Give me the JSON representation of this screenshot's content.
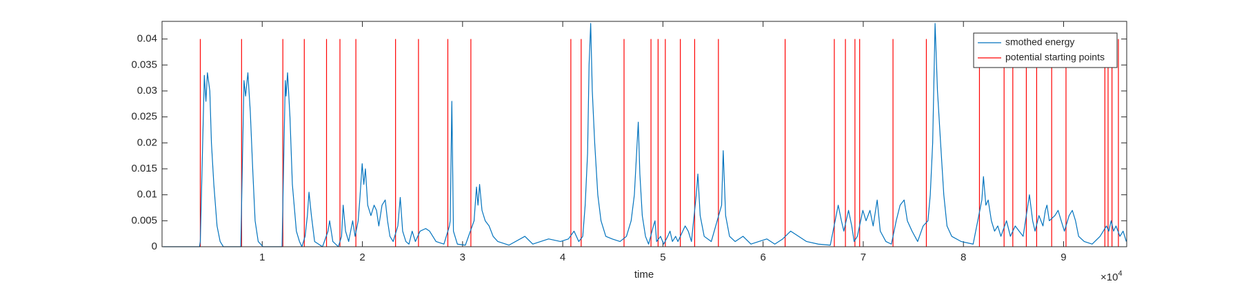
{
  "chart_data": {
    "type": "line",
    "xlabel": "time",
    "x_exponent": {
      "base": "×10",
      "power": "4"
    },
    "xlim": [
      0,
      9.63
    ],
    "xticks": [
      1,
      2,
      3,
      4,
      5,
      6,
      7,
      8,
      9
    ],
    "ylim": [
      0,
      0.0434
    ],
    "yticks": [
      0,
      0.005,
      0.01,
      0.015,
      0.02,
      0.025,
      0.03,
      0.035,
      0.04
    ],
    "grid": false,
    "legend": "northeast",
    "series": [
      {
        "name": "smothed energy",
        "color": "#0072bd",
        "mark": "line",
        "x": [
          0.01,
          0.374,
          0.382,
          0.422,
          0.438,
          0.453,
          0.477,
          0.493,
          0.517,
          0.549,
          0.58,
          0.612,
          0.786,
          0.818,
          0.834,
          0.857,
          0.881,
          0.905,
          0.929,
          0.96,
          1.008,
          1.198,
          1.23,
          1.238,
          1.253,
          1.277,
          1.301,
          1.341,
          1.372,
          1.396,
          1.428,
          1.451,
          1.467,
          1.491,
          1.523,
          1.602,
          1.657,
          1.673,
          1.705,
          1.76,
          1.792,
          1.808,
          1.832,
          1.863,
          1.903,
          1.927,
          1.958,
          1.974,
          1.998,
          2.014,
          2.03,
          2.053,
          2.085,
          2.117,
          2.141,
          2.164,
          2.196,
          2.228,
          2.251,
          2.275,
          2.307,
          2.354,
          2.378,
          2.402,
          2.434,
          2.465,
          2.497,
          2.529,
          2.576,
          2.632,
          2.671,
          2.735,
          2.814,
          2.869,
          2.877,
          2.893,
          2.909,
          2.948,
          3.028,
          3.115,
          3.139,
          3.154,
          3.17,
          3.194,
          3.226,
          3.265,
          3.305,
          3.352,
          3.463,
          3.622,
          3.701,
          3.859,
          3.978,
          4.057,
          4.113,
          4.16,
          4.2,
          4.224,
          4.248,
          4.263,
          4.279,
          4.295,
          4.319,
          4.35,
          4.382,
          4.43,
          4.493,
          4.572,
          4.636,
          4.683,
          4.715,
          4.754,
          4.77,
          4.794,
          4.826,
          4.857,
          4.905,
          4.921,
          4.937,
          4.976,
          5.008,
          5.048,
          5.071,
          5.095,
          5.127,
          5.15,
          5.198,
          5.222,
          5.253,
          5.285,
          5.333,
          5.349,
          5.372,
          5.412,
          5.483,
          5.586,
          5.602,
          5.626,
          5.665,
          5.721,
          5.8,
          5.879,
          5.958,
          6.038,
          6.117,
          6.196,
          6.275,
          6.354,
          6.434,
          6.552,
          6.671,
          6.75,
          6.782,
          6.806,
          6.853,
          6.885,
          6.909,
          6.941,
          6.996,
          7.028,
          7.067,
          7.099,
          7.139,
          7.17,
          7.226,
          7.281,
          7.329,
          7.368,
          7.408,
          7.44,
          7.487,
          7.543,
          7.598,
          7.646,
          7.669,
          7.693,
          7.717,
          7.741,
          7.772,
          7.804,
          7.836,
          7.883,
          7.978,
          8.097,
          8.184,
          8.2,
          8.224,
          8.247,
          8.279,
          8.311,
          8.343,
          8.374,
          8.43,
          8.469,
          8.517,
          8.556,
          8.596,
          8.659,
          8.691,
          8.715,
          8.754,
          8.794,
          8.818,
          8.834,
          8.857,
          8.913,
          8.945,
          8.976,
          9.008,
          9.055,
          9.087,
          9.119,
          9.15,
          9.206,
          9.285,
          9.364,
          9.428,
          9.451,
          9.475,
          9.499,
          9.523,
          9.562,
          9.594,
          9.626
        ],
        "values": [
          0,
          0,
          0.001,
          0.033,
          0.028,
          0.0335,
          0.03,
          0.02,
          0.012,
          0.004,
          0.001,
          0,
          0,
          0.032,
          0.029,
          0.0335,
          0.026,
          0.015,
          0.005,
          0.001,
          0,
          0,
          0.032,
          0.029,
          0.0335,
          0.025,
          0.012,
          0.003,
          0.001,
          0,
          0.002,
          0.006,
          0.0105,
          0.006,
          0.001,
          0,
          0.003,
          0.005,
          0.001,
          0,
          0.002,
          0.008,
          0.003,
          0.001,
          0.005,
          0.002,
          0.005,
          0.009,
          0.016,
          0.012,
          0.015,
          0.008,
          0.006,
          0.008,
          0.007,
          0.004,
          0.008,
          0.009,
          0.005,
          0.002,
          0.001,
          0.004,
          0.0095,
          0.003,
          0.001,
          0.0005,
          0.003,
          0.001,
          0.003,
          0.0035,
          0.003,
          0.001,
          0.0005,
          0.004,
          0.005,
          0.028,
          0.003,
          0.0005,
          0.0003,
          0.005,
          0.0115,
          0.008,
          0.012,
          0.007,
          0.005,
          0.004,
          0.002,
          0.001,
          0.0003,
          0.002,
          0.0005,
          0.0015,
          0.001,
          0.0015,
          0.003,
          0.001,
          0.002,
          0.008,
          0.018,
          0.035,
          0.043,
          0.03,
          0.02,
          0.01,
          0.005,
          0.002,
          0.0015,
          0.001,
          0.002,
          0.005,
          0.01,
          0.024,
          0.014,
          0.006,
          0.002,
          0.0005,
          0.004,
          0.005,
          0.001,
          0.002,
          0.0005,
          0.002,
          0.003,
          0.001,
          0.002,
          0.001,
          0.003,
          0.004,
          0.003,
          0.001,
          0.01,
          0.014,
          0.006,
          0.002,
          0.001,
          0.008,
          0.0185,
          0.006,
          0.002,
          0.001,
          0.002,
          0.0005,
          0.001,
          0.0015,
          0.0005,
          0.0015,
          0.003,
          0.002,
          0.001,
          0.0005,
          0.0003,
          0.008,
          0.005,
          0.003,
          0.007,
          0.004,
          0.001,
          0.002,
          0.007,
          0.005,
          0.007,
          0.004,
          0.009,
          0.003,
          0.001,
          0.0005,
          0.005,
          0.008,
          0.009,
          0.005,
          0.003,
          0.001,
          0.004,
          0.005,
          0.01,
          0.02,
          0.043,
          0.03,
          0.02,
          0.01,
          0.004,
          0.002,
          0.001,
          0.0005,
          0.009,
          0.0135,
          0.008,
          0.009,
          0.005,
          0.003,
          0.004,
          0.002,
          0.005,
          0.002,
          0.004,
          0.003,
          0.002,
          0.01,
          0.005,
          0.003,
          0.006,
          0.004,
          0.007,
          0.008,
          0.005,
          0.006,
          0.007,
          0.005,
          0.003,
          0.006,
          0.007,
          0.005,
          0.002,
          0.001,
          0.0005,
          0.002,
          0.004,
          0.003,
          0.005,
          0.003,
          0.004,
          0.002,
          0.003,
          0.001
        ]
      },
      {
        "name": "potential starting points",
        "color": "#ff0000",
        "mark": "vline",
        "x": [
          0.382,
          0.794,
          1.206,
          1.42,
          1.642,
          1.776,
          1.935,
          2.331,
          2.56,
          2.853,
          3.083,
          4.081,
          4.184,
          4.612,
          4.881,
          4.952,
          5.024,
          5.174,
          5.317,
          5.554,
          6.22,
          6.711,
          6.822,
          6.917,
          6.964,
          7.297,
          7.63,
          8.16,
          8.406,
          8.493,
          8.628,
          8.731,
          8.881,
          9.024,
          9.412,
          9.444,
          9.483,
          9.547
        ],
        "values": [
          0.04,
          0.04,
          0.04,
          0.04,
          0.04,
          0.04,
          0.04,
          0.04,
          0.04,
          0.04,
          0.04,
          0.04,
          0.04,
          0.04,
          0.04,
          0.04,
          0.04,
          0.04,
          0.04,
          0.04,
          0.04,
          0.04,
          0.04,
          0.04,
          0.04,
          0.04,
          0.04,
          0.04,
          0.04,
          0.04,
          0.04,
          0.04,
          0.04,
          0.04,
          0.04,
          0.04,
          0.04,
          0.04
        ]
      }
    ]
  }
}
